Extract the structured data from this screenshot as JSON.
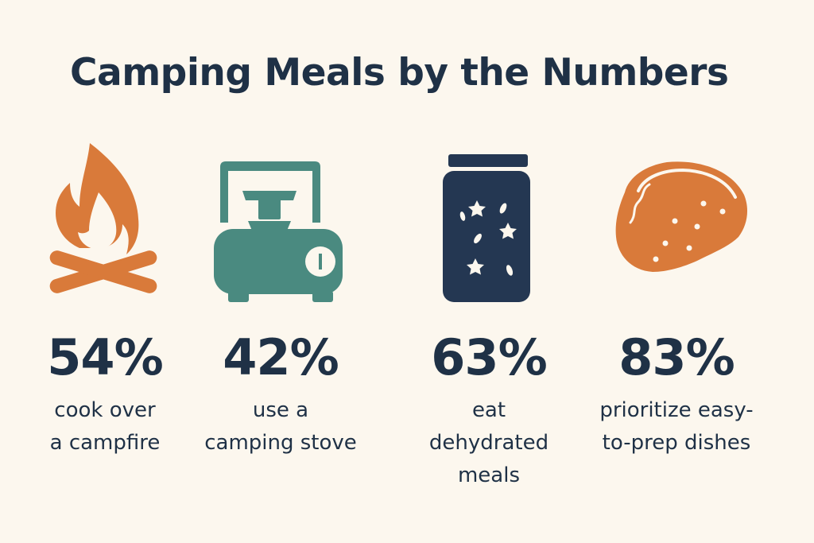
{
  "title": "Camping Meals by the Numbers",
  "colors": {
    "background": "#fcf7ee",
    "text": "#1f3146",
    "orange": "#d97a3a",
    "teal": "#4a8a80",
    "navy": "#243752"
  },
  "stats": [
    {
      "icon": "campfire-icon",
      "value": "54%",
      "description": "cook over\na campfire"
    },
    {
      "icon": "camping-stove-icon",
      "value": "42%",
      "description": "use a\ncamping stove"
    },
    {
      "icon": "jar-icon",
      "value": "63%",
      "description": "eat\ndehydrated\nmeals"
    },
    {
      "icon": "taco-icon",
      "value": "83%",
      "description": "prioritize easy-\nto-prep dishes"
    }
  ]
}
